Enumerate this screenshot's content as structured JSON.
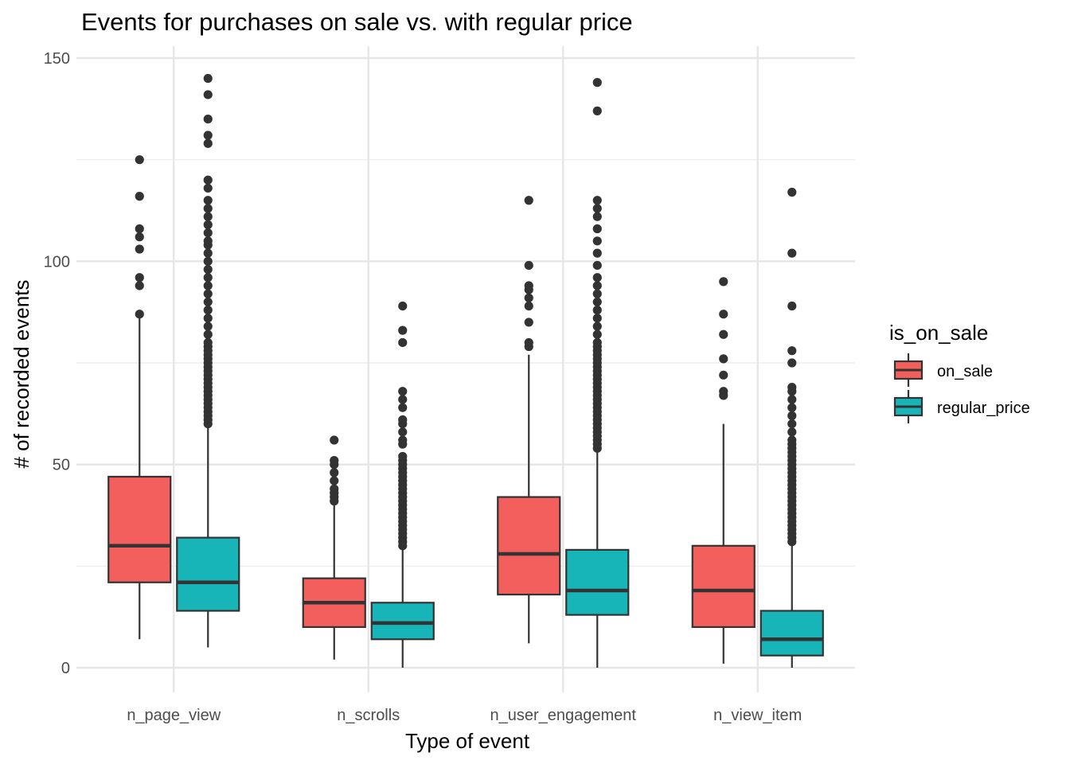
{
  "chart_data": {
    "type": "boxplot",
    "title": "Events for purchases on sale vs. with regular price",
    "xlabel": "Type of event",
    "ylabel": "# of recorded events",
    "ylim": [
      -6,
      152
    ],
    "yticks": [
      0,
      50,
      100,
      150
    ],
    "grid": true,
    "legend": {
      "title": "is_on_sale",
      "placement": "right"
    },
    "categories": [
      "n_page_view",
      "n_scrolls",
      "n_user_engagement",
      "n_view_item"
    ],
    "series": [
      {
        "name": "on_sale",
        "color": "#F25F5C",
        "boxes": [
          {
            "whisker_low": 7,
            "q1": 21,
            "median": 30,
            "q3": 47,
            "whisker_high": 86,
            "outliers": [
              87,
              94,
              96,
              103,
              106,
              108,
              116,
              125
            ]
          },
          {
            "whisker_low": 2,
            "q1": 10,
            "median": 16,
            "q3": 22,
            "whisker_high": 40,
            "outliers": [
              41,
              42,
              43,
              44,
              46,
              48,
              50,
              51,
              56
            ]
          },
          {
            "whisker_low": 6,
            "q1": 18,
            "median": 28,
            "q3": 42,
            "whisker_high": 77,
            "outliers": [
              79,
              80,
              85,
              89,
              91,
              93,
              94,
              99,
              115
            ]
          },
          {
            "whisker_low": 1,
            "q1": 10,
            "median": 19,
            "q3": 30,
            "whisker_high": 60,
            "outliers": [
              67,
              68,
              72,
              76,
              82,
              87,
              95
            ]
          }
        ]
      },
      {
        "name": "regular_price",
        "color": "#17B5B8",
        "boxes": [
          {
            "whisker_low": 5,
            "q1": 14,
            "median": 21,
            "q3": 32,
            "whisker_high": 59,
            "outliers": [
              60,
              61,
              62,
              63,
              64,
              65,
              66,
              67,
              68,
              69,
              70,
              71,
              72,
              73,
              74,
              75,
              76,
              77,
              78,
              79,
              80,
              82,
              84,
              86,
              88,
              90,
              92,
              94,
              96,
              98,
              100,
              102,
              104,
              105,
              107,
              109,
              111,
              113,
              115,
              118,
              120,
              129,
              131,
              135,
              141,
              145
            ]
          },
          {
            "whisker_low": 0,
            "q1": 7,
            "median": 11,
            "q3": 16,
            "whisker_high": 29,
            "outliers": [
              30,
              31,
              32,
              33,
              34,
              35,
              36,
              37,
              38,
              39,
              40,
              41,
              42,
              43,
              44,
              45,
              46,
              47,
              48,
              49,
              50,
              51,
              52,
              55,
              56,
              58,
              60,
              61,
              64,
              66,
              68,
              80,
              83,
              89
            ]
          },
          {
            "whisker_low": 0,
            "q1": 13,
            "median": 19,
            "q3": 29,
            "whisker_high": 53,
            "outliers": [
              54,
              55,
              56,
              57,
              58,
              59,
              60,
              61,
              62,
              63,
              64,
              65,
              66,
              67,
              68,
              69,
              70,
              71,
              72,
              73,
              74,
              75,
              76,
              77,
              78,
              79,
              80,
              82,
              84,
              86,
              88,
              90,
              92,
              94,
              96,
              99,
              102,
              105,
              108,
              111,
              113,
              115,
              137,
              144
            ]
          },
          {
            "whisker_low": 0,
            "q1": 3,
            "median": 7,
            "q3": 14,
            "whisker_high": 30,
            "outliers": [
              31,
              32,
              33,
              34,
              35,
              36,
              37,
              38,
              39,
              40,
              41,
              42,
              43,
              44,
              45,
              46,
              47,
              48,
              49,
              50,
              51,
              52,
              53,
              54,
              55,
              56,
              58,
              60,
              62,
              64,
              66,
              68,
              69,
              75,
              78,
              89,
              102,
              117
            ]
          }
        ]
      }
    ]
  }
}
